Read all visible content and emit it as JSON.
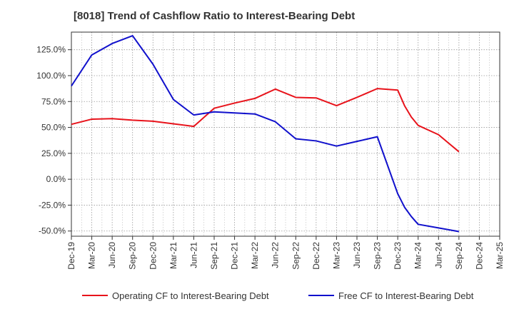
{
  "chart_data": {
    "type": "line",
    "title": "[8018]  Trend of Cashflow Ratio to Interest-Bearing Debt",
    "xlabel": "",
    "ylabel": "",
    "x": [
      "Dec-19",
      "Mar-20",
      "Jun-20",
      "Sep-20",
      "Dec-20",
      "Mar-21",
      "Jun-21",
      "Sep-21",
      "Dec-21",
      "Mar-22",
      "Jun-22",
      "Sep-22",
      "Dec-22",
      "Mar-23",
      "Jun-23",
      "Sep-23",
      "Dec-23",
      "Mar-24",
      "Jun-24",
      "Sep-24",
      "Dec-24",
      "Mar-25"
    ],
    "x_tick_labels": [
      "Dec-19",
      "Mar-20",
      "Jun-20",
      "Sep-20",
      "Dec-20",
      "Mar-21",
      "Jun-21",
      "Sep-21",
      "Dec-21",
      "Mar-22",
      "Jun-22",
      "Sep-22",
      "Dec-22",
      "Mar-23",
      "Jun-23",
      "Sep-23",
      "Dec-23",
      "Mar-24",
      "Jun-24",
      "Sep-24",
      "Dec-24",
      "Mar-25"
    ],
    "y_tick_labels": [
      "-50.0%",
      "-25.0%",
      "0.0%",
      "25.0%",
      "50.0%",
      "75.0%",
      "100.0%",
      "125.0%"
    ],
    "y_ticks": [
      -50,
      -25,
      0,
      25,
      50,
      75,
      100,
      125
    ],
    "ylim": [
      -55,
      142
    ],
    "grid": true,
    "legend_position": "bottom",
    "series": [
      {
        "name": "Operating CF to Interest-Bearing Debt",
        "color": "#e8131b",
        "points": [
          [
            "Dec-19",
            53
          ],
          [
            "Mar-20",
            58
          ],
          [
            "Jun-20",
            58.5
          ],
          [
            "Sep-20",
            57
          ],
          [
            "Dec-20",
            56
          ],
          [
            "Mar-21",
            53.5
          ],
          [
            "Jun-21",
            51
          ],
          [
            "Sep-21",
            68.5
          ],
          [
            "Dec-21",
            73.5
          ],
          [
            "Mar-22",
            78
          ],
          [
            "Jun-22",
            87
          ],
          [
            "Sep-22",
            79
          ],
          [
            "Dec-22",
            78.5
          ],
          [
            "Mar-23",
            71
          ],
          [
            "Jun-23",
            79
          ],
          [
            "Sep-23",
            87.5
          ],
          [
            "Dec-23",
            86
          ],
          [
            "Jan-24",
            71
          ],
          [
            "Feb-24",
            60
          ],
          [
            "Mar-24",
            52
          ],
          [
            "Jun-24",
            43
          ],
          [
            "Sep-24",
            26.5
          ]
        ]
      },
      {
        "name": "Free CF to Interest-Bearing Debt",
        "color": "#1010cc",
        "points": [
          [
            "Dec-19",
            90
          ],
          [
            "Mar-20",
            120
          ],
          [
            "Jun-20",
            131
          ],
          [
            "Sep-20",
            138.5
          ],
          [
            "Dec-20",
            111
          ],
          [
            "Mar-21",
            77
          ],
          [
            "Jun-21",
            62
          ],
          [
            "Sep-21",
            65
          ],
          [
            "Dec-21",
            64
          ],
          [
            "Mar-22",
            63
          ],
          [
            "Jun-22",
            55.5
          ],
          [
            "Sep-22",
            39
          ],
          [
            "Dec-22",
            37
          ],
          [
            "Mar-23",
            32
          ],
          [
            "Jun-23",
            36.5
          ],
          [
            "Sep-23",
            41
          ],
          [
            "Dec-23",
            -14
          ],
          [
            "Jan-24",
            -27
          ],
          [
            "Feb-24",
            -36
          ],
          [
            "Mar-24",
            -43.5
          ],
          [
            "Jun-24",
            -47
          ],
          [
            "Sep-24",
            -50.5
          ]
        ]
      }
    ]
  }
}
